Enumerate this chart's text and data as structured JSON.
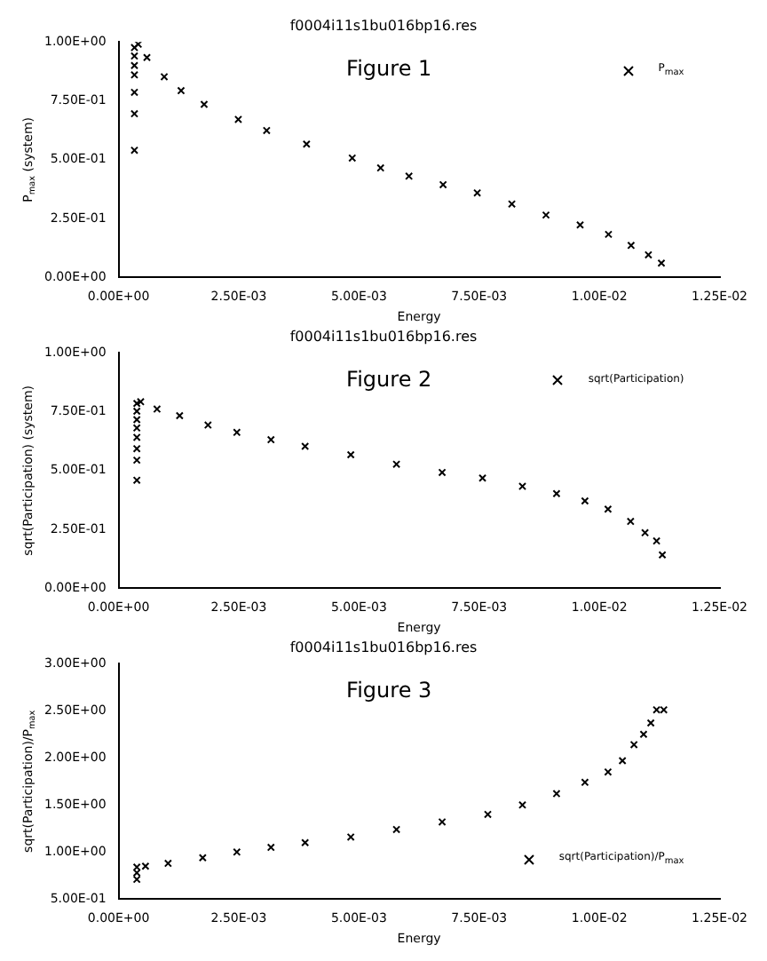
{
  "chart_data": [
    {
      "type": "scatter",
      "title": "f0004i11s1bu016bp16.res",
      "xlabel": "Energy",
      "ylabel": "P$_{max}$ (system)",
      "annotations": [
        "Figure 1"
      ],
      "legend": "top right",
      "marker": "cross",
      "grid": false,
      "xlim": [
        0,
        0.0125
      ],
      "xticks": [
        {
          "value": 0,
          "label": "0.00E+00"
        },
        {
          "value": 0.0025,
          "label": "2.50E-03"
        },
        {
          "value": 0.005,
          "label": "5.00E-03"
        },
        {
          "value": 0.0075,
          "label": "7.50E-03"
        },
        {
          "value": 0.01,
          "label": "1.00E-02"
        },
        {
          "value": 0.0125,
          "label": "1.25E-02"
        }
      ],
      "ylim": [
        0,
        1
      ],
      "yticks": [
        {
          "value": 0,
          "label": "0.00E+00"
        },
        {
          "value": 0.25,
          "label": "2.50E-01"
        },
        {
          "value": 0.5,
          "label": "5.00E-01"
        },
        {
          "value": 0.75,
          "label": "7.50E-01"
        },
        {
          "value": 1,
          "label": "1.00E+00"
        }
      ],
      "series": [
        {
          "name": "P$_{max}$",
          "color": "#000000",
          "x": [
            0.00033,
            0.00033,
            0.00033,
            0.00033,
            0.00033,
            0.00033,
            0.00033,
            0.00041,
            0.00059,
            0.00095,
            0.0013,
            0.00178,
            0.00249,
            0.00308,
            0.00391,
            0.00486,
            0.00545,
            0.00604,
            0.00675,
            0.00746,
            0.00818,
            0.00889,
            0.0096,
            0.01019,
            0.01066,
            0.01102,
            0.01129
          ],
          "values": [
            0.54,
            0.695,
            0.786,
            0.86,
            0.9,
            0.94,
            0.976,
            0.99,
            0.934,
            0.852,
            0.793,
            0.735,
            0.671,
            0.624,
            0.566,
            0.507,
            0.465,
            0.43,
            0.394,
            0.359,
            0.312,
            0.265,
            0.223,
            0.183,
            0.136,
            0.096,
            0.061
          ]
        }
      ]
    },
    {
      "type": "scatter",
      "title": "f0004i11s1bu016bp16.res",
      "xlabel": "Energy",
      "ylabel": "sqrt(Participation) (system)",
      "annotations": [
        "Figure 2"
      ],
      "legend": "top right",
      "marker": "cross",
      "grid": false,
      "xlim": [
        0,
        0.0125
      ],
      "xticks": [
        {
          "value": 0,
          "label": "0.00E+00"
        },
        {
          "value": 0.0025,
          "label": "2.50E-03"
        },
        {
          "value": 0.005,
          "label": "5.00E-03"
        },
        {
          "value": 0.0075,
          "label": "7.50E-03"
        },
        {
          "value": 0.01,
          "label": "1.00E-02"
        },
        {
          "value": 0.0125,
          "label": "1.25E-02"
        }
      ],
      "ylim": [
        0,
        1
      ],
      "yticks": [
        {
          "value": 0,
          "label": "0.00E+00"
        },
        {
          "value": 0.25,
          "label": "2.50E-01"
        },
        {
          "value": 0.5,
          "label": "5.00E-01"
        },
        {
          "value": 0.75,
          "label": "7.50E-01"
        },
        {
          "value": 1,
          "label": "1.00E+00"
        }
      ],
      "series": [
        {
          "name": "sqrt(Participation)",
          "color": "#000000",
          "x": [
            0.00038,
            0.00038,
            0.00038,
            0.00038,
            0.00038,
            0.00038,
            0.00038,
            0.00038,
            0.00046,
            0.0008,
            0.00127,
            0.00186,
            0.00246,
            0.00317,
            0.00388,
            0.00483,
            0.00578,
            0.00673,
            0.00757,
            0.0084,
            0.00911,
            0.0097,
            0.01018,
            0.01065,
            0.01095,
            0.01119,
            0.01131
          ],
          "values": [
            0.459,
            0.544,
            0.593,
            0.641,
            0.681,
            0.716,
            0.752,
            0.785,
            0.792,
            0.761,
            0.733,
            0.693,
            0.662,
            0.631,
            0.603,
            0.567,
            0.527,
            0.492,
            0.468,
            0.433,
            0.402,
            0.371,
            0.336,
            0.284,
            0.236,
            0.201,
            0.142
          ]
        }
      ]
    },
    {
      "type": "scatter",
      "title": "f0004i11s1bu016bp16.res",
      "xlabel": "Energy",
      "ylabel": "sqrt(Participation)/P$_{max}$",
      "annotations": [
        "Figure 3"
      ],
      "legend": "bottom right",
      "marker": "cross",
      "grid": false,
      "xlim": [
        0,
        0.0125
      ],
      "xticks": [
        {
          "value": 0,
          "label": "0.00E+00"
        },
        {
          "value": 0.0025,
          "label": "2.50E-03"
        },
        {
          "value": 0.005,
          "label": "5.00E-03"
        },
        {
          "value": 0.0075,
          "label": "7.50E-03"
        },
        {
          "value": 0.01,
          "label": "1.00E-02"
        },
        {
          "value": 0.0125,
          "label": "1.25E-02"
        }
      ],
      "ylim": [
        0.5,
        3
      ],
      "yticks": [
        {
          "value": 0.5,
          "label": "5.00E-01"
        },
        {
          "value": 1,
          "label": "1.00E+00"
        },
        {
          "value": 1.5,
          "label": "1.50E+00"
        },
        {
          "value": 2,
          "label": "2.00E+00"
        },
        {
          "value": 2.5,
          "label": "2.50E+00"
        },
        {
          "value": 3,
          "label": "3.00E+00"
        }
      ],
      "series": [
        {
          "name": "sqrt(Participation)/P$_{max}$",
          "color": "#000000",
          "x": [
            0.00038,
            0.00038,
            0.00038,
            0.00056,
            0.00103,
            0.00175,
            0.00246,
            0.00317,
            0.00388,
            0.00483,
            0.00578,
            0.00673,
            0.00768,
            0.0084,
            0.00911,
            0.0097,
            0.01018,
            0.01048,
            0.01072,
            0.01092,
            0.01107,
            0.01119,
            0.01134
          ],
          "values": [
            0.71,
            0.78,
            0.84,
            0.85,
            0.88,
            0.94,
            1.0,
            1.05,
            1.1,
            1.16,
            1.24,
            1.32,
            1.4,
            1.5,
            1.62,
            1.74,
            1.85,
            1.97,
            2.14,
            2.25,
            2.37,
            2.51,
            2.51
          ]
        }
      ]
    }
  ]
}
